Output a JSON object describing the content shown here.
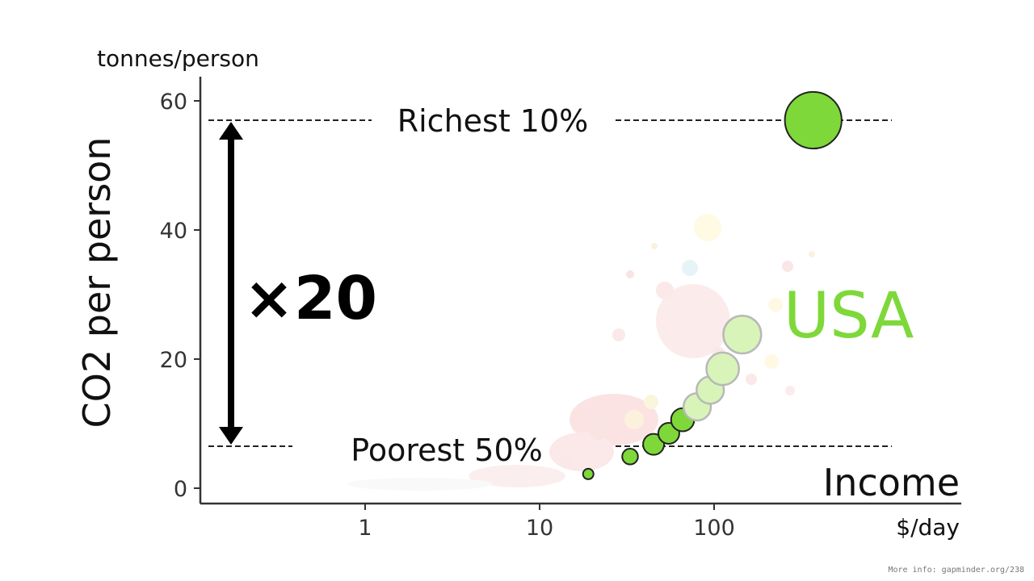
{
  "chart_data": {
    "type": "scatter",
    "title": "",
    "xlabel": "Income",
    "x_unit": "$/day",
    "ylabel": "CO2 per person",
    "y_unit": "tonnes/person",
    "x_scale": "log",
    "xlim": [
      0.1,
      2000
    ],
    "ylim": [
      0,
      63
    ],
    "x_ticks": [
      1,
      10,
      100
    ],
    "x_tick_labels": [
      "1",
      "10",
      "100"
    ],
    "y_ticks": [
      0,
      20,
      40,
      60
    ],
    "y_tick_labels": [
      "0",
      "20",
      "40",
      "60"
    ],
    "grid": false,
    "reference_lines": [
      {
        "name": "Richest 10%",
        "y": 57
      },
      {
        "name": "Poorest 50%",
        "y": 6.5
      }
    ],
    "factor_label": "×20",
    "highlight_label": "USA",
    "highlight_color": "#7ed83a",
    "series": [
      {
        "name": "USA",
        "points": [
          {
            "x": 19,
            "y": 2.2,
            "size": 1
          },
          {
            "x": 33,
            "y": 4.9,
            "size": 1.5
          },
          {
            "x": 45,
            "y": 6.8,
            "size": 2
          },
          {
            "x": 55,
            "y": 8.5,
            "size": 2
          },
          {
            "x": 66,
            "y": 10.6,
            "size": 2.2
          },
          {
            "x": 80,
            "y": 12.6,
            "size": 2.6,
            "faded": true
          },
          {
            "x": 95,
            "y": 15.2,
            "size": 2.6,
            "faded": true
          },
          {
            "x": 112,
            "y": 18.5,
            "size": 3.1,
            "faded": true
          },
          {
            "x": 145,
            "y": 23.8,
            "size": 3.6,
            "faded": true
          },
          {
            "x": 370,
            "y": 57,
            "size": 5.4
          }
        ]
      }
    ]
  },
  "footer": {
    "text": "More info: gapminder.org/238"
  }
}
